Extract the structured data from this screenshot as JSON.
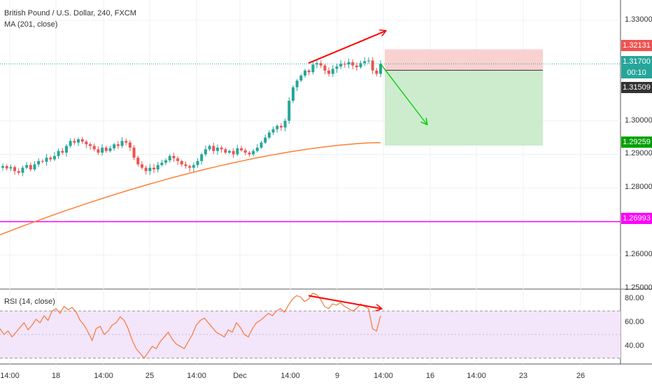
{
  "header": {
    "title": "British Pound / U.S. Dollar, 240, FXCM",
    "ma_label": "MA (201, close)",
    "rsi_label": "RSI (14, close)"
  },
  "colors": {
    "up": "#26a69a",
    "down": "#ef5350",
    "ma": "#ff7f36",
    "rsi": "#f4793b",
    "rsi_band": "#f3e5fa",
    "support": "#ff00ff",
    "stop_zone": "#f9c9c9",
    "target_zone": "#c8eac9",
    "annotation_red": "#ff0000",
    "annotation_green": "#00cc00",
    "last_price": "#26a69a"
  },
  "price_axis": {
    "ticks": [
      "1.33000",
      "1.30000",
      "1.29000",
      "1.28000",
      "1.26000",
      "1.25000"
    ],
    "tick_values": [
      1.33,
      1.3,
      1.29,
      1.28,
      1.26,
      1.25
    ],
    "markers": [
      {
        "label": "1.32131",
        "value": 1.32131,
        "color": "#ef5350"
      },
      {
        "label": "1.31700",
        "value": 1.317,
        "color": "#26a69a"
      },
      {
        "label": "00:10",
        "value": 1.3161,
        "color": "#26a69a"
      },
      {
        "label": "1.31509",
        "value": 1.31509,
        "color": "#333333"
      },
      {
        "label": "1.29259",
        "value": 1.29259,
        "color": "#00a000"
      },
      {
        "label": "1.26993",
        "value": 1.26993,
        "color": "#ff00ff"
      }
    ]
  },
  "rsi_axis": {
    "ticks": [
      "80.00",
      "60.00",
      "40.00"
    ],
    "tick_values": [
      80,
      60,
      40
    ]
  },
  "time_axis": {
    "ticks": [
      "14:00",
      "18",
      "14:00",
      "25",
      "14:00",
      "Dec",
      "14:00",
      "9",
      "14:00",
      "16",
      "14:00",
      "23",
      "26"
    ]
  },
  "chart_data": {
    "type": "candlestick",
    "title": "British Pound / U.S. Dollar, 240, FXCM",
    "symbol": "GBPUSD",
    "timeframe": "240",
    "price_range": [
      1.25,
      1.335
    ],
    "rsi_range": [
      25,
      88
    ],
    "rsi_levels": [
      30,
      70
    ],
    "support_level": 1.26993,
    "position": {
      "entry": 1.31509,
      "stop": 1.32131,
      "target": 1.29259
    },
    "closes": [
      1.2865,
      1.2858,
      1.2862,
      1.285,
      1.2845,
      1.286,
      1.2868,
      1.2855,
      1.287,
      1.288,
      1.2878,
      1.289,
      1.2885,
      1.2895,
      1.291,
      1.2905,
      1.2925,
      1.294,
      1.2935,
      1.2945,
      1.2938,
      1.293,
      1.2925,
      1.2915,
      1.2905,
      1.292,
      1.291,
      1.2918,
      1.293,
      1.2925,
      1.294,
      1.2935,
      1.292,
      1.289,
      1.287,
      1.286,
      1.285,
      1.286,
      1.2855,
      1.2868,
      1.2875,
      1.2882,
      1.2895,
      1.2888,
      1.288,
      1.287,
      1.2865,
      1.286,
      1.2868,
      1.288,
      1.29,
      1.2915,
      1.2925,
      1.291,
      1.292,
      1.2915,
      1.2905,
      1.291,
      1.29,
      1.2918,
      1.2912,
      1.2905,
      1.29,
      1.291,
      1.292,
      1.2935,
      1.295,
      1.2965,
      1.2975,
      1.2985,
      1.298,
      1.3,
      1.306,
      1.31,
      1.312,
      1.3135,
      1.315,
      1.3145,
      1.3168,
      1.3172,
      1.3165,
      1.315,
      1.314,
      1.3155,
      1.3162,
      1.317,
      1.3168,
      1.3175,
      1.3165,
      1.316,
      1.3172,
      1.3178,
      1.318,
      1.315,
      1.314,
      1.317
    ],
    "ma_201": {
      "from_index": 0,
      "values_start": 1.266,
      "values_end": 1.2935
    },
    "rsi": [
      55,
      50,
      53,
      48,
      52,
      56,
      60,
      54,
      58,
      63,
      60,
      66,
      62,
      70,
      72,
      68,
      74,
      71,
      73,
      69,
      62,
      58,
      52,
      45,
      55,
      57,
      50,
      53,
      58,
      60,
      65,
      62,
      55,
      45,
      38,
      34,
      30,
      35,
      40,
      38,
      44,
      48,
      52,
      46,
      42,
      40,
      38,
      44,
      50,
      58,
      62,
      64,
      60,
      56,
      52,
      50,
      48,
      54,
      52,
      60,
      56,
      50,
      48,
      55,
      60,
      62,
      65,
      68,
      66,
      70,
      72,
      69,
      75,
      80,
      83,
      82,
      78,
      80,
      85,
      84,
      80,
      74,
      72,
      76,
      75,
      77,
      74,
      72,
      70,
      72,
      76,
      74,
      72,
      55,
      53,
      66
    ]
  }
}
